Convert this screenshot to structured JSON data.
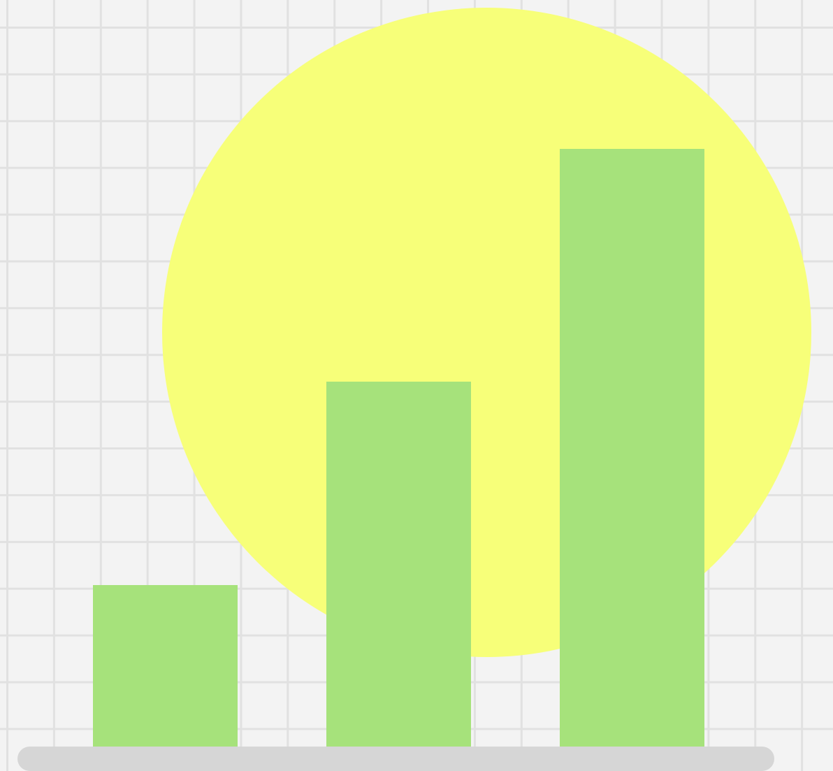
{
  "illustration": {
    "subject": "bar-chart-illustration",
    "colors": {
      "background": "#f3f3f3",
      "grid": "#e1e1e1",
      "sun": "#f7ff79",
      "bars": "#a6e27b",
      "baseline": "#d6d6d6"
    },
    "bars": [
      {
        "relative_level": 0.27
      },
      {
        "relative_level": 0.61
      },
      {
        "relative_level": 1.0
      }
    ]
  }
}
